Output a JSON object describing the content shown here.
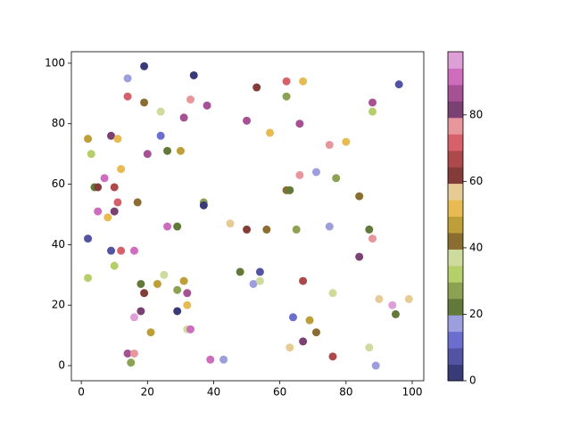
{
  "chart_data": {
    "type": "scatter",
    "x": [
      19,
      34,
      96,
      14,
      14,
      19,
      33,
      53,
      62,
      67,
      62,
      88,
      24,
      38,
      88,
      31,
      50,
      66,
      2,
      9,
      11,
      24,
      57,
      75,
      80,
      3,
      20,
      26,
      30,
      12,
      7,
      4,
      5,
      10,
      11,
      17,
      66,
      71,
      62,
      63,
      77,
      84,
      5,
      10,
      8,
      37,
      37,
      45,
      26,
      29,
      50,
      56,
      65,
      75,
      87,
      88,
      2,
      9,
      12,
      16,
      84,
      10,
      2,
      25,
      18,
      23,
      31,
      48,
      54,
      52,
      54,
      67,
      19,
      29,
      32,
      32,
      29,
      18,
      76,
      90,
      99,
      94,
      95,
      64,
      16,
      69,
      21,
      71,
      32,
      33,
      67,
      63,
      87,
      14,
      16,
      76,
      15,
      39,
      43,
      89
    ],
    "y": [
      99,
      96,
      93,
      95,
      89,
      87,
      88,
      92,
      94,
      94,
      89,
      87,
      84,
      86,
      84,
      82,
      81,
      80,
      75,
      76,
      75,
      76,
      77,
      73,
      74,
      70,
      70,
      71,
      71,
      65,
      62,
      59,
      59,
      59,
      54,
      54,
      63,
      64,
      58,
      58,
      62,
      56,
      51,
      51,
      49,
      54,
      53,
      47,
      46,
      46,
      45,
      45,
      45,
      46,
      45,
      42,
      42,
      38,
      38,
      38,
      36,
      33,
      29,
      30,
      27,
      27,
      28,
      31,
      31,
      27,
      28,
      28,
      24,
      25,
      24,
      20,
      18,
      18,
      24,
      22,
      22,
      20,
      17,
      16,
      16,
      15,
      11,
      11,
      12,
      12,
      8,
      6,
      6,
      4,
      4,
      3,
      1,
      2,
      2,
      0
    ],
    "c": [
      2,
      2,
      7,
      17,
      72,
      42,
      77,
      62,
      72,
      52,
      27,
      87,
      37,
      87,
      32,
      87,
      87,
      87,
      47,
      82,
      52,
      12,
      52,
      77,
      52,
      32,
      87,
      22,
      47,
      52,
      92,
      22,
      62,
      67,
      72,
      42,
      77,
      17,
      42,
      22,
      27,
      42,
      92,
      82,
      52,
      27,
      2,
      57,
      92,
      22,
      62,
      42,
      27,
      17,
      22,
      77,
      7,
      7,
      72,
      92,
      82,
      32,
      32,
      37,
      22,
      47,
      47,
      22,
      7,
      17,
      37,
      67,
      62,
      27,
      87,
      52,
      2,
      82,
      37,
      57,
      57,
      97,
      22,
      12,
      97,
      47,
      47,
      42,
      37,
      92,
      82,
      57,
      37,
      87,
      77,
      67,
      27,
      92,
      17,
      17
    ],
    "colormap": [
      "#393b79",
      "#5254a3",
      "#6b6ecf",
      "#9c9ede",
      "#637939",
      "#8ca252",
      "#b5cf6b",
      "#cedb9c",
      "#8c6d31",
      "#bd9e39",
      "#e7ba52",
      "#e7cb94",
      "#843c39",
      "#ad494a",
      "#d6616b",
      "#e7969c",
      "#7b4173",
      "#a55194",
      "#ce6dbd",
      "#de9ed6"
    ],
    "clim": [
      0,
      99
    ],
    "cticks": [
      0,
      20,
      40,
      60,
      80
    ],
    "xlim": [
      -3,
      103.5
    ],
    "xticks": [
      0,
      20,
      40,
      60,
      80,
      100
    ],
    "ylim": [
      -5,
      103.8
    ],
    "yticks": [
      0,
      20,
      40,
      60,
      80,
      100
    ]
  }
}
